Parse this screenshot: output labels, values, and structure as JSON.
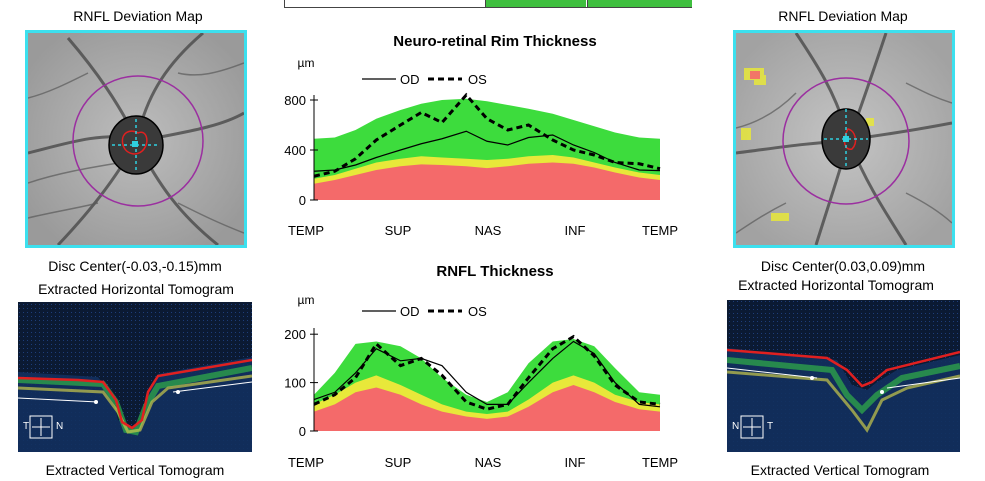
{
  "left": {
    "deviation_map_title": "RNFL Deviation Map",
    "disc_center": "Disc Center(-0.03,-0.15)mm",
    "horizontal_tomogram_label": "Extracted Horizontal Tomogram",
    "vertical_tomogram_label": "Extracted Vertical Tomogram",
    "orientation": {
      "left": "T",
      "right": "N"
    }
  },
  "right": {
    "deviation_map_title": "RNFL Deviation Map",
    "disc_center": "Disc Center(0.03,0.09)mm",
    "horizontal_tomogram_label": "Extracted Horizontal Tomogram",
    "vertical_tomogram_label": "Extracted Vertical Tomogram",
    "orientation": {
      "left": "N",
      "right": "T"
    }
  },
  "colors": {
    "normal": "#3ddc3d",
    "borderline": "#e8e83a",
    "outside_normal": "#f46a6a",
    "map_border": "#3ce0ee",
    "circle": "#9b2fa0"
  },
  "chart_data": [
    {
      "type": "line",
      "title": "Neuro-retinal Rim Thickness",
      "ylabel": "µm",
      "ylim": [
        0,
        1000
      ],
      "yticks": [
        "0",
        "400",
        "800"
      ],
      "ytick_values": [
        0,
        400,
        800
      ],
      "categories": [
        "TEMP",
        "SUP",
        "NAS",
        "INF",
        "TEMP"
      ],
      "legend": {
        "od": "OD",
        "os": "OS"
      },
      "x": [
        0,
        0.06,
        0.12,
        0.18,
        0.25,
        0.31,
        0.37,
        0.44,
        0.5,
        0.56,
        0.62,
        0.69,
        0.75,
        0.81,
        0.87,
        0.94,
        1.0
      ],
      "bands": {
        "red_top": [
          130,
          160,
          200,
          240,
          270,
          285,
          280,
          270,
          255,
          270,
          290,
          300,
          290,
          260,
          220,
          180,
          160
        ],
        "yellow_top": [
          170,
          200,
          250,
          300,
          330,
          350,
          340,
          330,
          320,
          330,
          350,
          360,
          340,
          300,
          260,
          220,
          200
        ],
        "green_top": [
          490,
          500,
          560,
          650,
          720,
          770,
          800,
          810,
          790,
          760,
          730,
          690,
          640,
          590,
          540,
          500,
          490
        ]
      },
      "series": [
        {
          "name": "OD",
          "values": [
            230,
            240,
            280,
            340,
            400,
            450,
            490,
            550,
            470,
            440,
            500,
            520,
            440,
            380,
            300,
            240,
            235
          ]
        },
        {
          "name": "OS",
          "values": [
            190,
            230,
            330,
            480,
            600,
            700,
            620,
            840,
            650,
            560,
            600,
            480,
            400,
            360,
            300,
            290,
            250
          ]
        }
      ]
    },
    {
      "type": "line",
      "title": "RNFL Thickness",
      "ylabel": "µm",
      "ylim": [
        0,
        250
      ],
      "yticks": [
        "0",
        "100",
        "200"
      ],
      "ytick_values": [
        0,
        100,
        200
      ],
      "categories": [
        "TEMP",
        "SUP",
        "NAS",
        "INF",
        "TEMP"
      ],
      "legend": {
        "od": "OD",
        "os": "OS"
      },
      "x": [
        0,
        0.06,
        0.12,
        0.18,
        0.25,
        0.31,
        0.37,
        0.44,
        0.5,
        0.56,
        0.62,
        0.69,
        0.75,
        0.81,
        0.87,
        0.94,
        1.0
      ],
      "bands": {
        "red_top": [
          40,
          55,
          80,
          90,
          75,
          55,
          40,
          30,
          25,
          30,
          50,
          80,
          95,
          80,
          60,
          45,
          40
        ],
        "yellow_top": [
          55,
          75,
          100,
          115,
          95,
          75,
          55,
          40,
          35,
          40,
          65,
          100,
          115,
          100,
          75,
          60,
          55
        ],
        "green_top": [
          75,
          120,
          180,
          185,
          175,
          150,
          110,
          75,
          60,
          80,
          140,
          185,
          190,
          175,
          130,
          80,
          75
        ]
      },
      "series": [
        {
          "name": "OD",
          "values": [
            65,
            80,
            120,
            170,
            145,
            150,
            135,
            80,
            55,
            55,
            100,
            150,
            185,
            160,
            100,
            55,
            50
          ]
        },
        {
          "name": "OS",
          "values": [
            55,
            75,
            110,
            180,
            135,
            150,
            115,
            60,
            45,
            55,
            110,
            170,
            195,
            155,
            95,
            60,
            55
          ]
        }
      ]
    }
  ]
}
